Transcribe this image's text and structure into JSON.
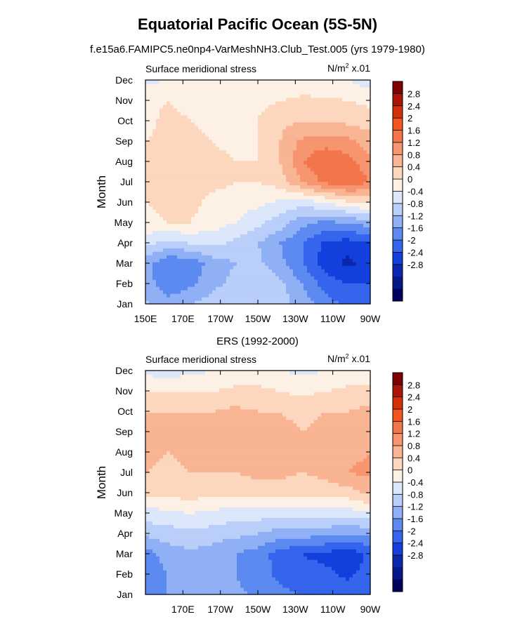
{
  "title": "Equatorial Pacific Ocean (5S-5N)",
  "subtitle": "f.e15a6.FAMIPC5.ne0np4-VarMeshNH3.Club_Test.005 (yrs 1979-1980)",
  "chart_data": [
    {
      "type": "heatmap",
      "panel": "model",
      "left_label": "Surface meridional stress",
      "units_base": "N/m",
      "units_exp": "2",
      "units_scale": " x.01",
      "ylabel": "Month",
      "y_categories": [
        "Jan",
        "Feb",
        "Mar",
        "Apr",
        "May",
        "Jun",
        "Jul",
        "Aug",
        "Sep",
        "Oct",
        "Nov",
        "Dec"
      ],
      "x_tick_labels": [
        "150E",
        "170E",
        "170W",
        "150W",
        "130W",
        "110W",
        "90W"
      ],
      "x_tick_lons": [
        150,
        170,
        190,
        210,
        230,
        250,
        270
      ],
      "xlim": [
        150,
        270
      ],
      "x_columns": [
        150,
        162,
        174,
        186,
        198,
        210,
        222,
        234,
        246,
        258,
        270
      ],
      "values": [
        [
          -0.7,
          -1.0,
          -0.8,
          -0.6,
          -0.5,
          -0.4,
          -0.6,
          -1.0,
          -1.4,
          -1.7,
          -1.8
        ],
        [
          -1.0,
          -1.5,
          -1.3,
          -0.9,
          -0.7,
          -0.4,
          -0.7,
          -1.2,
          -1.8,
          -2.0,
          -2.0
        ],
        [
          -1.0,
          -1.6,
          -1.5,
          -1.0,
          -0.8,
          -0.7,
          -1.1,
          -1.6,
          -2.2,
          -2.5,
          -2.3
        ],
        [
          -0.3,
          -0.5,
          -0.4,
          -0.3,
          -0.5,
          -0.8,
          -1.2,
          -1.6,
          -2.1,
          -2.2,
          -2.0
        ],
        [
          0.3,
          0.4,
          0.4,
          0.2,
          0.0,
          -0.3,
          -0.6,
          -1.1,
          -1.3,
          -1.2,
          -1.0
        ],
        [
          0.4,
          0.5,
          0.5,
          0.3,
          0.2,
          0.1,
          -0.1,
          -0.2,
          0.0,
          0.3,
          0.5
        ],
        [
          0.4,
          0.5,
          0.5,
          0.5,
          0.4,
          0.4,
          0.6,
          1.2,
          1.7,
          1.9,
          1.6
        ],
        [
          0.4,
          0.5,
          0.6,
          0.5,
          0.4,
          0.4,
          0.8,
          1.6,
          2.0,
          1.8,
          1.3
        ],
        [
          0.4,
          0.5,
          0.5,
          0.4,
          0.3,
          0.4,
          0.8,
          1.3,
          1.4,
          1.3,
          1.0
        ],
        [
          0.3,
          0.5,
          0.4,
          0.3,
          0.3,
          0.4,
          0.7,
          0.8,
          0.8,
          0.7,
          0.6
        ],
        [
          0.3,
          0.4,
          0.3,
          0.2,
          0.2,
          0.3,
          0.4,
          0.5,
          0.5,
          0.4,
          0.3
        ],
        [
          -0.1,
          0.0,
          0.1,
          0.1,
          0.1,
          0.1,
          0.1,
          0.1,
          0.0,
          0.0,
          -0.2
        ]
      ],
      "colorbar_levels": [
        "2.8",
        "2.4",
        "2",
        "1.6",
        "1.2",
        "0.8",
        "0.4",
        "0",
        "-0.4",
        "-0.8",
        "-1.2",
        "-1.6",
        "-2",
        "-2.4",
        "-2.8"
      ]
    },
    {
      "type": "heatmap",
      "panel": "observed",
      "title": "ERS (1992-2000)",
      "left_label": "Surface meridional stress",
      "units_base": "N/m",
      "units_exp": "2",
      "units_scale": " x.01",
      "ylabel": "Month",
      "y_categories": [
        "Jan",
        "Feb",
        "Mar",
        "Apr",
        "May",
        "Jun",
        "Jul",
        "Aug",
        "Sep",
        "Oct",
        "Nov",
        "Dec"
      ],
      "x_tick_labels": [
        "170E",
        "170W",
        "150W",
        "130W",
        "110W",
        "90W"
      ],
      "x_tick_lons": [
        170,
        190,
        210,
        230,
        250,
        270
      ],
      "xlim": [
        150,
        270
      ],
      "x_columns": [
        150,
        162,
        174,
        186,
        198,
        210,
        222,
        234,
        246,
        258,
        270
      ],
      "values": [
        [
          -1.5,
          -1.2,
          -1.0,
          -1.0,
          -1.1,
          -1.3,
          -1.5,
          -1.6,
          -1.6,
          -1.7,
          -1.6
        ],
        [
          -1.6,
          -1.2,
          -1.0,
          -1.1,
          -1.2,
          -1.4,
          -1.7,
          -1.9,
          -1.9,
          -2.1,
          -1.8
        ],
        [
          -1.4,
          -1.0,
          -0.9,
          -1.0,
          -1.2,
          -1.4,
          -1.8,
          -2.0,
          -2.1,
          -2.3,
          -1.9
        ],
        [
          -0.7,
          -0.6,
          -0.5,
          -0.6,
          -0.7,
          -0.8,
          -1.0,
          -1.0,
          -1.1,
          -1.2,
          -1.1
        ],
        [
          -0.2,
          -0.1,
          0.0,
          -0.1,
          -0.2,
          -0.2,
          -0.3,
          -0.2,
          -0.2,
          -0.2,
          -0.1
        ],
        [
          0.5,
          0.5,
          0.6,
          0.5,
          0.5,
          0.6,
          0.6,
          0.5,
          0.6,
          0.6,
          0.9
        ],
        [
          0.8,
          0.7,
          0.8,
          0.8,
          0.8,
          0.9,
          0.9,
          0.8,
          0.9,
          1.2,
          1.3
        ],
        [
          0.9,
          0.8,
          0.9,
          0.8,
          0.9,
          0.9,
          0.9,
          0.8,
          0.9,
          1.1,
          1.2
        ],
        [
          1.2,
          0.9,
          0.9,
          0.9,
          1.0,
          1.0,
          0.9,
          0.8,
          0.9,
          1.0,
          1.1
        ],
        [
          0.8,
          0.8,
          0.8,
          0.8,
          0.9,
          0.8,
          0.8,
          0.7,
          0.8,
          0.8,
          0.9
        ],
        [
          0.4,
          0.4,
          0.4,
          0.4,
          0.5,
          0.5,
          0.4,
          0.3,
          0.4,
          0.5,
          0.6
        ],
        [
          -0.1,
          -0.2,
          -0.1,
          0.0,
          0.1,
          0.1,
          0.0,
          -0.1,
          0.0,
          0.1,
          0.0
        ]
      ],
      "colorbar_levels": [
        "2.8",
        "2.4",
        "2",
        "1.6",
        "1.2",
        "0.8",
        "0.4",
        "0",
        "-0.4",
        "-0.8",
        "-1.2",
        "-1.6",
        "-2",
        "-2.4",
        "-2.8"
      ]
    }
  ],
  "colorbar_colors": [
    "#7f0000",
    "#aa1508",
    "#d4310b",
    "#f3571d",
    "#f3764b",
    "#f6956f",
    "#f8b493",
    "#fcd7bd",
    "#fdf0e4",
    "#dde7fb",
    "#b9cef8",
    "#8fb0f5",
    "#5d8af0",
    "#3565ec",
    "#1340dc",
    "#0b27b0",
    "#061886",
    "#00005e"
  ]
}
